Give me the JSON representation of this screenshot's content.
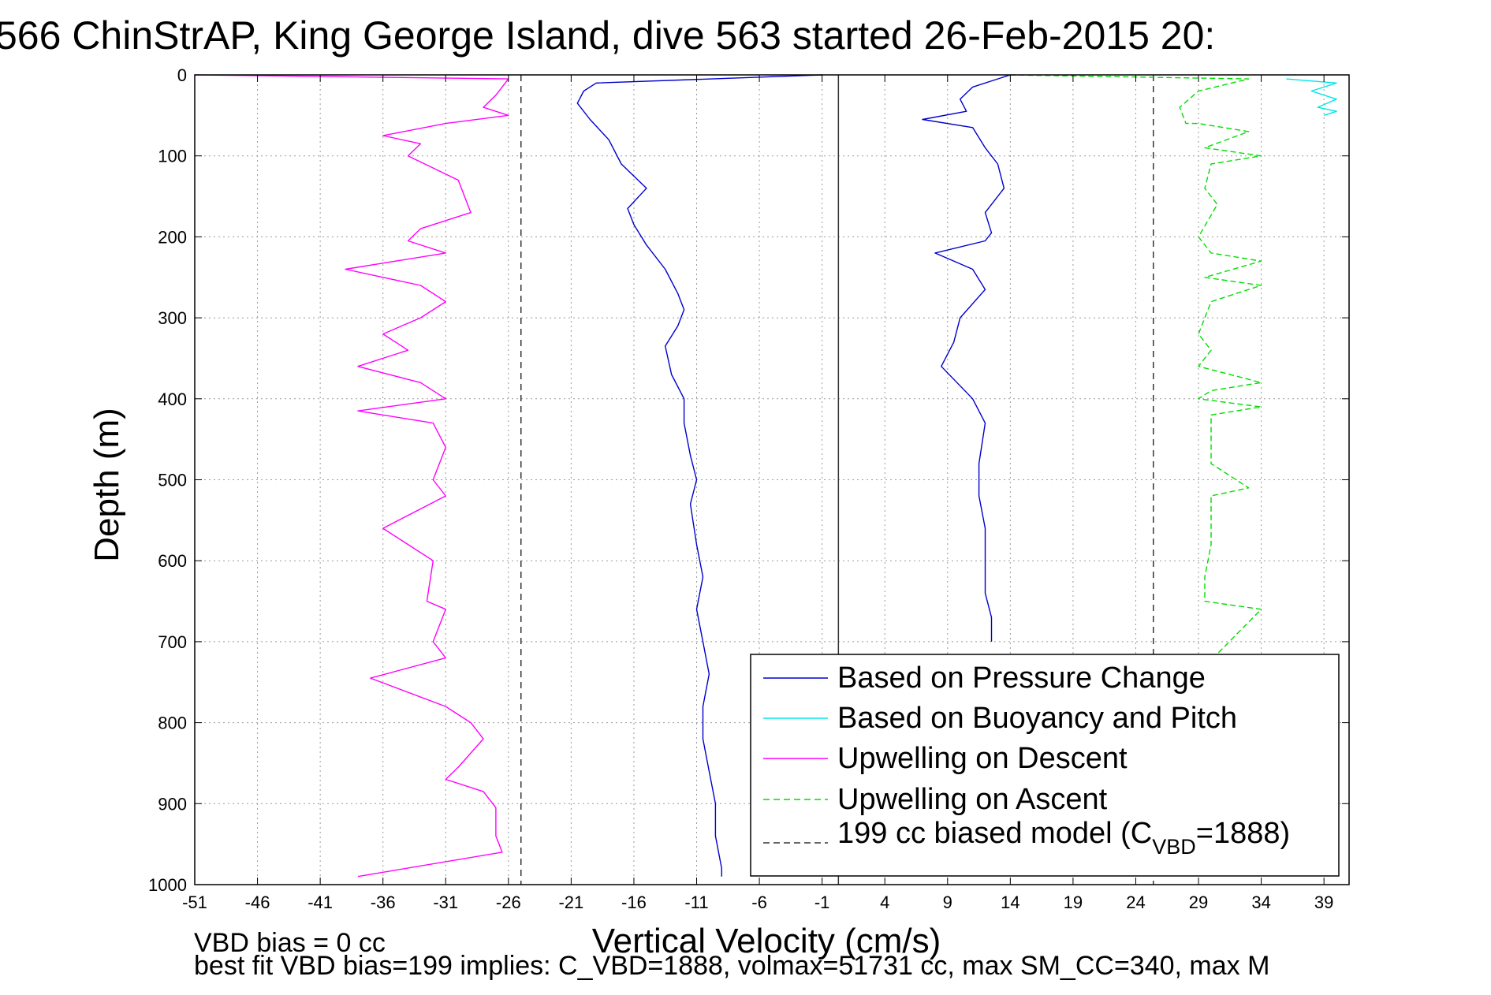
{
  "chart_data": {
    "type": "line",
    "title": "566 ChinStrAP, King George Island, dive 563 started 26-Feb-2015 20:",
    "xlabel": "Vertical Velocity (cm/s)",
    "ylabel": "Depth (m)",
    "xlim": [
      -51,
      41
    ],
    "ylim": [
      0,
      1000
    ],
    "y_reversed": true,
    "grid": true,
    "x_ticks": [
      -51,
      -46,
      -41,
      -36,
      -31,
      -26,
      -21,
      -16,
      -11,
      -6,
      -1,
      4,
      9,
      14,
      19,
      24,
      29,
      34,
      39
    ],
    "y_ticks": [
      0,
      100,
      200,
      300,
      400,
      500,
      600,
      700,
      800,
      900,
      1000
    ],
    "legend_position": "lower-right",
    "series": [
      {
        "name": "Based on Pressure Change",
        "color": "#0000cc",
        "style": "solid",
        "segments": [
          {
            "x": [
              -1,
              -19,
              -20,
              -20.5,
              -19.5,
              -18,
              -17,
              -15,
              -16.5,
              -16,
              -15,
              -13.5,
              -12.5,
              -12,
              -12.5,
              -13.5,
              -13,
              -12,
              -12,
              -11.5,
              -11,
              -11.5,
              -11,
              -10.5,
              -11,
              -10.5,
              -10,
              -10.5,
              -10.5,
              -10,
              -9.5,
              -9.5,
              -9,
              -9
            ],
            "y": [
              0,
              10,
              20,
              35,
              55,
              80,
              110,
              140,
              165,
              185,
              210,
              240,
              270,
              290,
              310,
              335,
              370,
              400,
              430,
              470,
              500,
              530,
              580,
              620,
              660,
              700,
              740,
              780,
              820,
              860,
              900,
              940,
              980,
              990
            ]
          },
          {
            "x": [
              14,
              11,
              10,
              10.5,
              7,
              11,
              12,
              13,
              13.5,
              12,
              12.5,
              12,
              8,
              11,
              12,
              10,
              9.5,
              8.5,
              11,
              12,
              11.5,
              11.5,
              12,
              12,
              12,
              12.5,
              12.5
            ],
            "y": [
              0,
              15,
              30,
              45,
              55,
              65,
              90,
              110,
              140,
              170,
              195,
              205,
              220,
              240,
              265,
              300,
              330,
              360,
              400,
              430,
              480,
              520,
              560,
              600,
              640,
              670,
              700
            ]
          }
        ]
      },
      {
        "name": "Based on Buoyancy and Pitch",
        "color": "#00e5e5",
        "style": "solid",
        "segments": [
          {
            "x": [
              36,
              40,
              38,
              40,
              38.5,
              40,
              39
            ],
            "y": [
              5,
              10,
              20,
              30,
              40,
              45,
              50
            ]
          },
          {
            "x": [
              40,
              39.5,
              40,
              39.5,
              40
            ],
            "y": [
              855,
              870,
              885,
              900,
              910
            ]
          },
          {
            "x": [
              30,
              40
            ],
            "y": [
              985,
              988
            ]
          }
        ]
      },
      {
        "name": "Upwelling on Descent",
        "color": "#ff00ff",
        "style": "solid",
        "segments": [
          {
            "x": [
              -51,
              -26,
              -27,
              -28,
              -26,
              -31,
              -36,
              -33,
              -34,
              -30,
              -29,
              -33,
              -34,
              -31,
              -35,
              -39,
              -33,
              -31,
              -33,
              -36,
              -34,
              -38,
              -33,
              -31,
              -38,
              -32,
              -31,
              -32,
              -31,
              -36,
              -32,
              -32.5,
              -31,
              -32,
              -31,
              -37,
              -31,
              -29,
              -28,
              -30,
              -31,
              -28,
              -27,
              -27,
              -26.5,
              -38
            ],
            "y": [
              0,
              5,
              25,
              40,
              50,
              60,
              75,
              85,
              100,
              130,
              170,
              190,
              205,
              220,
              230,
              240,
              260,
              280,
              300,
              320,
              340,
              360,
              380,
              400,
              415,
              430,
              460,
              500,
              520,
              560,
              600,
              650,
              660,
              700,
              720,
              745,
              780,
              800,
              820,
              855,
              870,
              885,
              905,
              940,
              960,
              990
            ]
          }
        ]
      },
      {
        "name": "Upwelling on Ascent",
        "color": "#00dd00",
        "style": "dashed",
        "segments": [
          {
            "x": [
              14,
              33,
              29,
              27.5,
              28,
              29,
              33,
              29.5,
              34,
              30,
              29.5,
              30.5,
              29,
              30,
              34,
              29.5,
              34,
              30,
              29,
              30,
              29,
              34,
              30,
              29,
              34,
              30,
              30,
              33,
              30,
              30,
              29.5,
              29.5,
              34,
              30.5
            ],
            "y": [
              0,
              5,
              20,
              40,
              60,
              60,
              70,
              90,
              100,
              110,
              140,
              160,
              200,
              220,
              230,
              250,
              260,
              280,
              320,
              340,
              360,
              380,
              390,
              400,
              410,
              420,
              480,
              510,
              520,
              580,
              620,
              650,
              660,
              715
            ]
          }
        ]
      }
    ],
    "reference_lines": [
      {
        "x": -25,
        "color": "#333333",
        "style": "dashed"
      },
      {
        "x": 0.3,
        "color": "#333333",
        "style": "solid"
      },
      {
        "x": 25.4,
        "color": "#333333",
        "style": "dashed"
      }
    ],
    "legend_entries": [
      {
        "label": "Based on Pressure Change",
        "color": "#0000cc",
        "style": "solid"
      },
      {
        "label": "Based on Buoyancy and Pitch",
        "color": "#00e5e5",
        "style": "solid"
      },
      {
        "label": "Upwelling on Descent",
        "color": "#ff00ff",
        "style": "solid"
      },
      {
        "label": "Upwelling on Ascent",
        "color": "#00dd00",
        "style": "dashed"
      },
      {
        "label_main": "199 cc biased model (C",
        "label_sub": "VBD",
        "label_tail": "=1888)",
        "color": "#333333",
        "style": "dashed"
      }
    ],
    "annotations": {
      "vbd_bias": "VBD bias = 0 cc",
      "best_fit": "best fit VBD bias=199 implies: C_VBD=1888, volmax=51731 cc, max SM_CC=340, max M"
    }
  }
}
